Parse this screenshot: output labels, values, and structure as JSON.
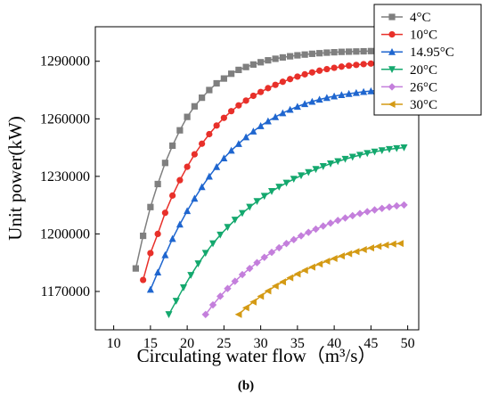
{
  "chart_data": {
    "type": "line",
    "xlabel": "Circulating water flow（m³/s）",
    "ylabel": "Unit power(kW)",
    "caption": "(b)",
    "xlim": [
      7.5,
      51.5
    ],
    "ylim": [
      1150000,
      1308000
    ],
    "xticks": [
      "10",
      "15",
      "20",
      "25",
      "30",
      "35",
      "40",
      "45",
      "50"
    ],
    "yticks": [
      "1170000",
      "1200000",
      "1230000",
      "1260000",
      "1290000"
    ],
    "legend_position": "top-right",
    "series": [
      {
        "name": "4°C",
        "color": "#7f7f7f",
        "marker": "square",
        "x": [
          13,
          14,
          15,
          16,
          17,
          18,
          19,
          20,
          21,
          22,
          23,
          24,
          25,
          26,
          27,
          28,
          29,
          30,
          31,
          32,
          33,
          34,
          35,
          36,
          37,
          38,
          39,
          40,
          41,
          42,
          43,
          44,
          45,
          46,
          47,
          48,
          49
        ],
        "y": [
          1182000,
          1199000,
          1214000,
          1226000,
          1237000,
          1246000,
          1254000,
          1261000,
          1266500,
          1271000,
          1275000,
          1278500,
          1281000,
          1283500,
          1285500,
          1287000,
          1288300,
          1289500,
          1290500,
          1291300,
          1292000,
          1292600,
          1293100,
          1293500,
          1293900,
          1294200,
          1294500,
          1294700,
          1294900,
          1295000,
          1295100,
          1295200,
          1295300,
          1295400,
          1295500,
          1295500,
          1295500
        ]
      },
      {
        "name": "10°C",
        "color": "#e8302a",
        "marker": "circle",
        "x": [
          14,
          15,
          16,
          17,
          18,
          19,
          20,
          21,
          22,
          23,
          24,
          25,
          26,
          27,
          28,
          29,
          30,
          31,
          32,
          33,
          34,
          35,
          36,
          37,
          38,
          39,
          40,
          41,
          42,
          43,
          44,
          45,
          46,
          47,
          48,
          49
        ],
        "y": [
          1176000,
          1190000,
          1200000,
          1211000,
          1220000,
          1228000,
          1235000,
          1241500,
          1247000,
          1252000,
          1256500,
          1260500,
          1264000,
          1267000,
          1269500,
          1272000,
          1274000,
          1276000,
          1277700,
          1279300,
          1280700,
          1282000,
          1283200,
          1284200,
          1285100,
          1285900,
          1286600,
          1287200,
          1287700,
          1288100,
          1288500,
          1288800,
          1289000,
          1289200,
          1289300,
          1289400
        ]
      },
      {
        "name": "14.95°C",
        "color": "#1f66cf",
        "marker": "triangle-up",
        "x": [
          15,
          16,
          17,
          18,
          19,
          20,
          21,
          22,
          23,
          24,
          25,
          26,
          27,
          28,
          29,
          30,
          31,
          32,
          33,
          34,
          35,
          36,
          37,
          38,
          39,
          40,
          41,
          42,
          43,
          44,
          45,
          46,
          47,
          48,
          49
        ],
        "y": [
          1171000,
          1180000,
          1189000,
          1197500,
          1205000,
          1212000,
          1218500,
          1224500,
          1230000,
          1235000,
          1239500,
          1243500,
          1247000,
          1250500,
          1253500,
          1256300,
          1258800,
          1261000,
          1263000,
          1264800,
          1266400,
          1267800,
          1269000,
          1270100,
          1271000,
          1271800,
          1272500,
          1273100,
          1273600,
          1274100,
          1274500,
          1274800,
          1275000,
          1275200,
          1275400
        ]
      },
      {
        "name": "20°C",
        "color": "#14a86e",
        "marker": "triangle-down",
        "x": [
          17.5,
          18.5,
          19.5,
          20.5,
          21.5,
          22.5,
          23.5,
          24.5,
          25.5,
          26.5,
          27.5,
          28.5,
          29.5,
          30.5,
          31.5,
          32.5,
          33.5,
          34.5,
          35.5,
          36.5,
          37.5,
          38.5,
          39.5,
          40.5,
          41.5,
          42.5,
          43.5,
          44.5,
          45.5,
          46.5,
          47.5,
          48.5,
          49.5
        ],
        "y": [
          1158000,
          1165000,
          1172000,
          1178500,
          1184500,
          1190000,
          1195000,
          1199500,
          1203500,
          1207300,
          1210800,
          1214000,
          1217000,
          1219700,
          1222200,
          1224500,
          1226600,
          1228600,
          1230400,
          1232100,
          1233700,
          1235200,
          1236600,
          1237800,
          1239000,
          1240100,
          1241100,
          1242000,
          1242800,
          1243500,
          1244100,
          1244600,
          1245000
        ]
      },
      {
        "name": "26°C",
        "color": "#c47fdc",
        "marker": "diamond",
        "x": [
          22.5,
          23.5,
          24.5,
          25.5,
          26.5,
          27.5,
          28.5,
          29.5,
          30.5,
          31.5,
          32.5,
          33.5,
          34.5,
          35.5,
          36.5,
          37.5,
          38.5,
          39.5,
          40.5,
          41.5,
          42.5,
          43.5,
          44.5,
          45.5,
          46.5,
          47.5,
          48.5,
          49.5
        ],
        "y": [
          1158000,
          1163000,
          1167500,
          1171500,
          1175300,
          1178800,
          1182000,
          1185000,
          1187800,
          1190400,
          1192800,
          1195000,
          1197000,
          1199000,
          1200800,
          1202500,
          1204100,
          1205600,
          1207000,
          1208300,
          1209500,
          1210600,
          1211600,
          1212500,
          1213300,
          1214000,
          1214600,
          1215100
        ]
      },
      {
        "name": "30°C",
        "color": "#d49a14",
        "marker": "triangle-left",
        "x": [
          27,
          28,
          29,
          30,
          31,
          32,
          33,
          34,
          35,
          36,
          37,
          38,
          39,
          40,
          41,
          42,
          43,
          44,
          45,
          46,
          47,
          48,
          49
        ],
        "y": [
          1158000,
          1161500,
          1164500,
          1167500,
          1170300,
          1172800,
          1175000,
          1177100,
          1179100,
          1181000,
          1182700,
          1184300,
          1185800,
          1187200,
          1188500,
          1189700,
          1190800,
          1191800,
          1192700,
          1193500,
          1194200,
          1194700,
          1195000
        ]
      }
    ]
  }
}
